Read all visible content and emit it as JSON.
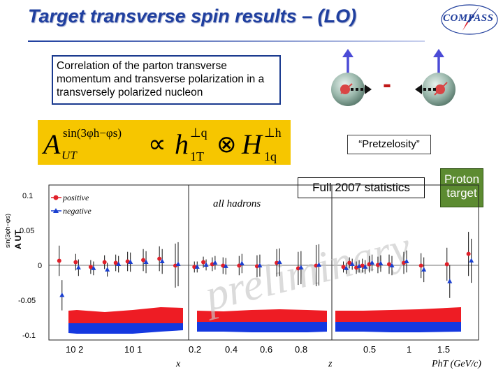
{
  "slide": {
    "title": "Target transverse spin results – (LO)",
    "logo_text": "COMPASS",
    "correlation_text": "Correlation of the parton transverse momentum and transverse polarization in a transversely polarized nucleon",
    "formula": {
      "lhs": "A",
      "lhs_sup": "sin(3φh−φs)",
      "lhs_sub": "UT",
      "propto": "∝",
      "h": "h",
      "h_sup": "⊥q",
      "h_sub": "1T",
      "otimes": "⊗",
      "H": "H",
      "H_sup": "⊥h",
      "H_sub": "1q"
    },
    "minus_sign": "-",
    "pretzelosity": "“Pretzelosity”",
    "stats_label": "Full 2007 statistics",
    "proton_label_1": "Proton",
    "proton_label_2": "target",
    "colors": {
      "title": "#1f3f9f",
      "formula_bg": "#f6c600",
      "proton_bg": "#5c8b31",
      "positive": "#e0202a",
      "negative": "#1a3fd0",
      "band_red": "#ee1c24",
      "band_blue": "#1438e0"
    }
  },
  "plot": {
    "y_axis_label": "sin(3φh−φs)",
    "y_axis_sub": "A UT",
    "y_ticks": [
      "0.1",
      "0.05",
      "0",
      "-0.05",
      "-0.1"
    ],
    "legend_positive": "positive",
    "legend_negative": "negative",
    "all_hadrons": "all hadrons",
    "watermark": "preliminary",
    "panels": [
      {
        "name": "x",
        "xlabel": "x",
        "tick_labels": [
          "10 2",
          "10 1"
        ]
      },
      {
        "name": "z",
        "xlabel": "z",
        "tick_labels": [
          "0.2",
          "0.4",
          "0.6",
          "0.8"
        ]
      },
      {
        "name": "pht",
        "xlabel": "PhT (GeV/c)",
        "tick_labels": [
          "0.5",
          "1",
          "1.5"
        ]
      }
    ]
  },
  "chart_data": {
    "type": "scatter",
    "title": "",
    "ylabel": "A UT sin(3φh−φs)",
    "ylim": [
      -0.11,
      0.115
    ],
    "legend": [
      "positive",
      "negative"
    ],
    "panels": [
      {
        "xlabel": "x",
        "scale": "log",
        "x": [
          0.0064,
          0.0105,
          0.0165,
          0.025,
          0.035,
          0.05,
          0.08,
          0.13,
          0.21
        ],
        "series": [
          {
            "name": "positive",
            "values": [
              0.005,
              0.003,
              -0.004,
              0.003,
              0.002,
              0.004,
              0.006,
              0.008,
              -0.002
            ],
            "errors": [
              0.022,
              0.012,
              0.01,
              0.01,
              0.012,
              0.014,
              0.016,
              0.018,
              0.032
            ]
          },
          {
            "name": "negative",
            "values": [
              -0.045,
              -0.005,
              -0.006,
              -0.008,
              0.0,
              0.003,
              0.003,
              0.004,
              0.0
            ],
            "errors": [
              0.022,
              0.012,
              0.01,
              0.01,
              0.012,
              0.014,
              0.016,
              0.018,
              0.032
            ]
          }
        ]
      },
      {
        "xlabel": "z",
        "scale": "linear",
        "x": [
          0.22,
          0.27,
          0.32,
          0.38,
          0.47,
          0.57,
          0.68,
          0.8,
          0.9
        ],
        "series": [
          {
            "name": "positive",
            "values": [
              -0.004,
              0.003,
              0.0,
              -0.002,
              -0.002,
              -0.003,
              0.002,
              -0.006,
              -0.002
            ],
            "errors": [
              0.008,
              0.008,
              0.01,
              0.012,
              0.014,
              0.016,
              0.02,
              0.024,
              0.03
            ]
          },
          {
            "name": "negative",
            "values": [
              -0.004,
              -0.001,
              0.002,
              -0.003,
              0.001,
              -0.002,
              0.003,
              -0.005,
              -0.001
            ],
            "errors": [
              0.008,
              0.008,
              0.01,
              0.012,
              0.014,
              0.016,
              0.02,
              0.024,
              0.03
            ]
          }
        ]
      },
      {
        "xlabel": "PhT (GeV/c)",
        "scale": "linear",
        "x": [
          0.15,
          0.22,
          0.3,
          0.37,
          0.45,
          0.55,
          0.68,
          0.85,
          1.05,
          1.35,
          1.6
        ],
        "series": [
          {
            "name": "positive",
            "values": [
              -0.004,
              0.002,
              -0.005,
              -0.002,
              0.0,
              -0.001,
              0.0,
              0.002,
              -0.002,
              0.0,
              0.015
            ],
            "errors": [
              0.008,
              0.008,
              0.009,
              0.01,
              0.012,
              0.012,
              0.014,
              0.016,
              0.018,
              0.024,
              0.032
            ]
          },
          {
            "name": "negative",
            "values": [
              -0.006,
              0.0,
              -0.003,
              -0.004,
              0.002,
              0.001,
              -0.002,
              0.004,
              -0.008,
              -0.025,
              0.005
            ],
            "errors": [
              0.008,
              0.008,
              0.009,
              0.01,
              0.012,
              0.012,
              0.014,
              0.016,
              0.018,
              0.024,
              0.032
            ]
          }
        ]
      }
    ]
  }
}
